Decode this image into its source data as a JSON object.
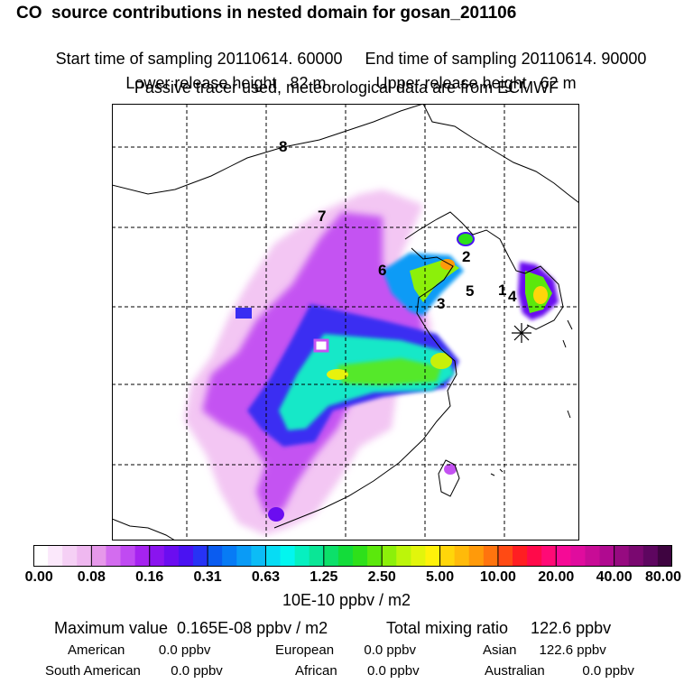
{
  "header": {
    "title": "CO  source contributions in nested domain for gosan_201106",
    "start_time": "Start time of sampling 20110614. 60000",
    "end_time": "End time of sampling 20110614. 90000",
    "lower_release": "Lower release height   82 m",
    "upper_release": "Upper release height   62 m",
    "tracer_note": "Passive tracer used, meteorological data are from ECMWF"
  },
  "map": {
    "region_labels": [
      "8",
      "7",
      "6",
      "2",
      "3",
      "5",
      "1",
      "4"
    ],
    "station_marker": "asterisk-icon"
  },
  "colorbar": {
    "colors": [
      "#ffffff",
      "#fbe8fb",
      "#f5d0f5",
      "#efb8f0",
      "#e698ea",
      "#d36cef",
      "#c04af2",
      "#a623f0",
      "#8a14ef",
      "#6b0df0",
      "#4a12f2",
      "#2733f5",
      "#0a5cf0",
      "#077bf5",
      "#0a9bf6",
      "#0cbcf6",
      "#07dcf4",
      "#02f6ef",
      "#06f0c0",
      "#0ae696",
      "#0ce06a",
      "#13dc3a",
      "#2ee01a",
      "#5be80c",
      "#8cf00a",
      "#bcf50a",
      "#e2f50c",
      "#fff20a",
      "#ffd60a",
      "#ffba0a",
      "#ff9a0a",
      "#ff740e",
      "#ff4a14",
      "#ff1e22",
      "#ff0a4a",
      "#ff0a76",
      "#f60a96",
      "#e00c9e",
      "#c80c96",
      "#b00a90",
      "#960a80",
      "#7a0870",
      "#5e0660",
      "#3e0440"
    ],
    "tick_labels": [
      "0.00",
      "0.08",
      "0.16",
      "0.31",
      "0.63",
      "1.25",
      "2.50",
      "5.00",
      "10.00",
      "20.00",
      "40.00",
      "80.00"
    ],
    "units": "10E-10 ppbv / m2"
  },
  "stats": {
    "max_value": "Maximum value  0.165E-08 ppbv / m2",
    "total_mixing": "Total mixing ratio     122.6 ppbv",
    "american": "American         0.0 ppbv",
    "european": "European        0.0 ppbv",
    "asian": "Asian      122.6 ppbv",
    "south_american": "South American        0.0 ppbv",
    "african": "African        0.0 ppbv",
    "australian": "Australian          0.0 ppbv"
  }
}
